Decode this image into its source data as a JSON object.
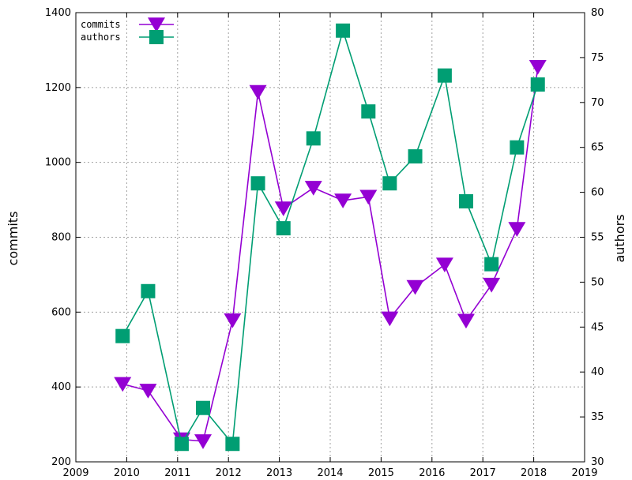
{
  "chart_data": {
    "type": "line",
    "xlim": [
      2009,
      2019
    ],
    "x_ticks": [
      "2009",
      "2010",
      "2011",
      "2012",
      "2013",
      "2014",
      "2015",
      "2016",
      "2017",
      "2018",
      "2019"
    ],
    "ylabel": "commits",
    "y2label": "authors",
    "ylim": [
      200,
      1400
    ],
    "y_ticks": [
      "200",
      "400",
      "600",
      "800",
      "1000",
      "1200",
      "1400"
    ],
    "y2lim": [
      30,
      80
    ],
    "y2_ticks": [
      "30",
      "35",
      "40",
      "45",
      "50",
      "55",
      "60",
      "65",
      "70",
      "75",
      "80"
    ],
    "grid": true,
    "legend_position": "top-left",
    "series": [
      {
        "name": "commits",
        "axis": "left",
        "marker": "triangle-down",
        "color": "#9400d3",
        "points": [
          [
            2009.92,
            408
          ],
          [
            2010.42,
            390
          ],
          [
            2011.08,
            260
          ],
          [
            2011.5,
            255
          ],
          [
            2012.08,
            578
          ],
          [
            2012.58,
            1188
          ],
          [
            2013.08,
            877
          ],
          [
            2013.67,
            932
          ],
          [
            2014.25,
            898
          ],
          [
            2014.75,
            908
          ],
          [
            2015.17,
            583
          ],
          [
            2015.67,
            667
          ],
          [
            2016.25,
            727
          ],
          [
            2016.67,
            577
          ],
          [
            2017.17,
            673
          ],
          [
            2017.67,
            822
          ],
          [
            2018.08,
            1255
          ]
        ]
      },
      {
        "name": "authors",
        "axis": "right",
        "marker": "square",
        "color": "#009e73",
        "points": [
          [
            2009.92,
            44
          ],
          [
            2010.42,
            49
          ],
          [
            2011.08,
            32
          ],
          [
            2011.5,
            36
          ],
          [
            2012.08,
            32
          ],
          [
            2012.58,
            61
          ],
          [
            2013.08,
            56
          ],
          [
            2013.67,
            66
          ],
          [
            2014.25,
            78
          ],
          [
            2014.75,
            69
          ],
          [
            2015.17,
            61
          ],
          [
            2015.67,
            64
          ],
          [
            2016.25,
            73
          ],
          [
            2016.67,
            59
          ],
          [
            2017.17,
            52
          ],
          [
            2017.67,
            65
          ],
          [
            2018.08,
            72
          ]
        ]
      }
    ]
  }
}
